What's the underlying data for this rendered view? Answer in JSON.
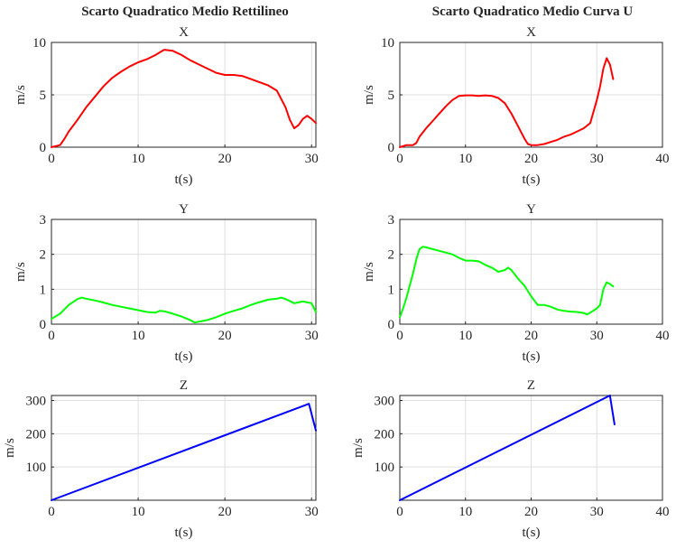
{
  "column_titles": [
    "Scarto Quadratico Medio Rettilineo",
    "Scarto Quadratico Medio Curva U"
  ],
  "chart_data": [
    {
      "type": "line",
      "column_title": "Scarto Quadratico Medio Rettilineo",
      "title": "X",
      "xlabel": "t(s)",
      "ylabel": "m/s",
      "xlim": [
        0,
        30.5
      ],
      "ylim": [
        0,
        10
      ],
      "xticks": [
        0,
        10,
        20,
        30
      ],
      "yticks": [
        0,
        5,
        10
      ],
      "grid": true,
      "color": "#ff0000",
      "series": [
        {
          "x": [
            0,
            0.5,
            1,
            1.5,
            2,
            3,
            4,
            5,
            6,
            7,
            8,
            9,
            10,
            11,
            12,
            13,
            14,
            15,
            16,
            17,
            18,
            19,
            20,
            21,
            22,
            23,
            24,
            25,
            26,
            27,
            27.5,
            28,
            28.5,
            29,
            29.5,
            30,
            30.5
          ],
          "y": [
            0,
            0.1,
            0.2,
            0.8,
            1.5,
            2.6,
            3.8,
            4.8,
            5.8,
            6.6,
            7.2,
            7.7,
            8.1,
            8.4,
            8.8,
            9.3,
            9.2,
            8.8,
            8.3,
            7.9,
            7.5,
            7.1,
            6.9,
            6.9,
            6.8,
            6.5,
            6.2,
            5.9,
            5.4,
            3.8,
            2.6,
            1.8,
            2.1,
            2.7,
            3.0,
            2.7,
            2.3
          ]
        }
      ]
    },
    {
      "type": "line",
      "column_title": "Scarto Quadratico Medio Curva U",
      "title": "X",
      "xlabel": "t(s)",
      "ylabel": "m/s",
      "xlim": [
        0,
        40
      ],
      "ylim": [
        0,
        10
      ],
      "xticks": [
        0,
        10,
        20,
        30,
        40
      ],
      "yticks": [
        0,
        5,
        10
      ],
      "grid": true,
      "color": "#ff0000",
      "series": [
        {
          "x": [
            0,
            1,
            2,
            2.5,
            3,
            4,
            5,
            6,
            7,
            8,
            9,
            10,
            11,
            12,
            13,
            14,
            15,
            16,
            17,
            18,
            19,
            19.5,
            20,
            21,
            22,
            23,
            24,
            25,
            26,
            27,
            28,
            29,
            30,
            30.5,
            31,
            31.5,
            32,
            32.5
          ],
          "y": [
            0,
            0.2,
            0.2,
            0.4,
            1.0,
            1.8,
            2.5,
            3.2,
            3.9,
            4.5,
            4.9,
            4.95,
            4.95,
            4.9,
            4.95,
            4.9,
            4.7,
            4.2,
            3.2,
            2.0,
            0.8,
            0.3,
            0.2,
            0.2,
            0.3,
            0.5,
            0.7,
            1.0,
            1.2,
            1.5,
            1.8,
            2.3,
            4.5,
            5.8,
            7.5,
            8.5,
            7.9,
            6.5
          ]
        }
      ]
    },
    {
      "type": "line",
      "column_title": "Scarto Quadratico Medio Rettilineo",
      "title": "Y",
      "xlabel": "t(s)",
      "ylabel": "m/s",
      "xlim": [
        0,
        30.5
      ],
      "ylim": [
        0,
        3
      ],
      "xticks": [
        0,
        10,
        20,
        30
      ],
      "yticks": [
        0,
        1,
        2,
        3
      ],
      "grid": true,
      "color": "#00ff00",
      "series": [
        {
          "x": [
            0,
            1,
            2,
            3,
            3.5,
            4,
            5,
            6,
            7,
            8,
            9,
            10,
            11,
            12,
            12.5,
            13,
            14,
            15,
            16,
            16.5,
            17,
            18,
            19,
            20,
            21,
            22,
            23,
            24,
            25,
            26,
            26.5,
            27,
            28,
            29,
            30,
            30.5
          ],
          "y": [
            0.15,
            0.3,
            0.55,
            0.72,
            0.76,
            0.73,
            0.68,
            0.62,
            0.55,
            0.5,
            0.45,
            0.4,
            0.35,
            0.33,
            0.38,
            0.37,
            0.3,
            0.22,
            0.12,
            0.05,
            0.07,
            0.12,
            0.2,
            0.3,
            0.38,
            0.45,
            0.55,
            0.63,
            0.7,
            0.73,
            0.76,
            0.72,
            0.6,
            0.65,
            0.6,
            0.35
          ]
        }
      ]
    },
    {
      "type": "line",
      "column_title": "Scarto Quadratico Medio Curva U",
      "title": "Y",
      "xlabel": "t(s)",
      "ylabel": "m/s",
      "xlim": [
        0,
        40
      ],
      "ylim": [
        0,
        3
      ],
      "xticks": [
        0,
        10,
        20,
        30,
        40
      ],
      "yticks": [
        0,
        1,
        2,
        3
      ],
      "grid": true,
      "color": "#00ff00",
      "series": [
        {
          "x": [
            0,
            0.5,
            1,
            1.5,
            2,
            2.5,
            3,
            3.5,
            4,
            5,
            6,
            7,
            8,
            9,
            10,
            11,
            12,
            13,
            14,
            15,
            16,
            16.5,
            17,
            18,
            19,
            20,
            21,
            22,
            23,
            24,
            25,
            26,
            27,
            28,
            28.5,
            29,
            30,
            30.5,
            31,
            31.5,
            32,
            32.5
          ],
          "y": [
            0.2,
            0.45,
            0.75,
            1.1,
            1.45,
            1.85,
            2.15,
            2.22,
            2.2,
            2.15,
            2.1,
            2.05,
            2.0,
            1.9,
            1.82,
            1.82,
            1.8,
            1.7,
            1.62,
            1.5,
            1.55,
            1.62,
            1.55,
            1.3,
            1.1,
            0.8,
            0.55,
            0.55,
            0.5,
            0.42,
            0.38,
            0.36,
            0.35,
            0.32,
            0.28,
            0.33,
            0.45,
            0.55,
            1.0,
            1.2,
            1.15,
            1.08
          ]
        }
      ]
    },
    {
      "type": "line",
      "column_title": "Scarto Quadratico Medio Rettilineo",
      "title": "Z",
      "xlabel": "t(s)",
      "ylabel": "m/s",
      "xlim": [
        0,
        30.5
      ],
      "ylim": [
        0,
        315
      ],
      "xticks": [
        0,
        10,
        20,
        30
      ],
      "yticks": [
        100,
        200,
        300
      ],
      "grid": true,
      "color": "#0000ff",
      "series": [
        {
          "x": [
            0,
            29.7,
            30.5
          ],
          "y": [
            0,
            290,
            210
          ]
        }
      ]
    },
    {
      "type": "line",
      "column_title": "Scarto Quadratico Medio Curva U",
      "title": "Z",
      "xlabel": "t(s)",
      "ylabel": "m/s",
      "xlim": [
        0,
        40
      ],
      "ylim": [
        0,
        315
      ],
      "xticks": [
        0,
        10,
        20,
        30,
        40
      ],
      "yticks": [
        100,
        200,
        300
      ],
      "grid": true,
      "color": "#0000ff",
      "series": [
        {
          "x": [
            0,
            32,
            32.7
          ],
          "y": [
            0,
            315,
            228
          ]
        }
      ]
    }
  ]
}
